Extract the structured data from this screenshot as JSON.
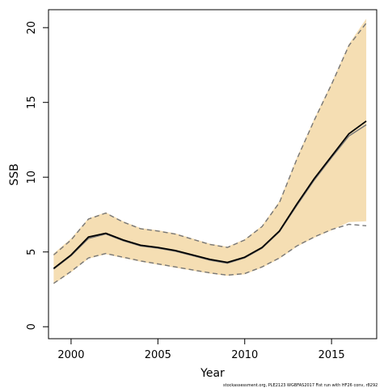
{
  "chart_data": {
    "type": "line",
    "title": "",
    "xlabel": "Year",
    "ylabel": "SSB",
    "xlim": [
      1998.7,
      2017.6
    ],
    "ylim": [
      -0.8,
      21.2
    ],
    "x_ticks": [
      2000,
      2005,
      2010,
      2015
    ],
    "y_ticks": [
      0,
      5,
      10,
      15,
      20
    ],
    "grid": false,
    "legend": "none",
    "x": [
      1999,
      2000,
      2001,
      2002,
      2003,
      2004,
      2005,
      2006,
      2007,
      2008,
      2009,
      2010,
      2011,
      2012,
      2013,
      2014,
      2015,
      2016,
      2017
    ],
    "series": [
      {
        "role": "estimate",
        "color": "#000000",
        "values": [
          3.9,
          4.8,
          6.0,
          6.25,
          5.8,
          5.45,
          5.3,
          5.1,
          4.8,
          4.5,
          4.3,
          4.65,
          5.3,
          6.4,
          8.2,
          9.9,
          11.4,
          12.9,
          13.75
        ]
      },
      {
        "role": "alt-estimate",
        "color": "#777777",
        "values": [
          3.85,
          4.75,
          5.9,
          6.2,
          5.75,
          5.4,
          5.25,
          5.05,
          4.75,
          4.45,
          4.25,
          4.6,
          5.25,
          6.35,
          8.1,
          9.8,
          11.3,
          12.75,
          13.5
        ]
      },
      {
        "role": "upper-bound",
        "color": "#777777",
        "values": [
          4.8,
          5.8,
          7.2,
          7.6,
          7.0,
          6.55,
          6.4,
          6.2,
          5.85,
          5.5,
          5.3,
          5.8,
          6.7,
          8.3,
          11.2,
          13.8,
          16.2,
          18.8,
          20.3
        ]
      },
      {
        "role": "lower-bound",
        "color": "#777777",
        "values": [
          2.9,
          3.7,
          4.6,
          4.9,
          4.65,
          4.4,
          4.2,
          4.0,
          3.8,
          3.6,
          3.45,
          3.55,
          4.0,
          4.6,
          5.4,
          6.0,
          6.5,
          6.85,
          6.75
        ]
      }
    ],
    "band": {
      "color": "#f5deb3",
      "upper": [
        4.9,
        5.9,
        7.25,
        7.65,
        7.05,
        6.6,
        6.45,
        6.25,
        5.9,
        5.55,
        5.35,
        5.85,
        6.75,
        8.4,
        11.3,
        13.9,
        16.3,
        18.9,
        20.6
      ],
      "lower": [
        2.85,
        3.65,
        4.55,
        4.85,
        4.6,
        4.35,
        4.15,
        3.95,
        3.75,
        3.55,
        3.4,
        3.5,
        3.95,
        4.55,
        5.35,
        5.95,
        6.45,
        7.0,
        7.05
      ]
    },
    "footnote": "stockassessment.org, PLE2123 WGBFAS2017 Fist run with HF26 conv, r8292"
  }
}
